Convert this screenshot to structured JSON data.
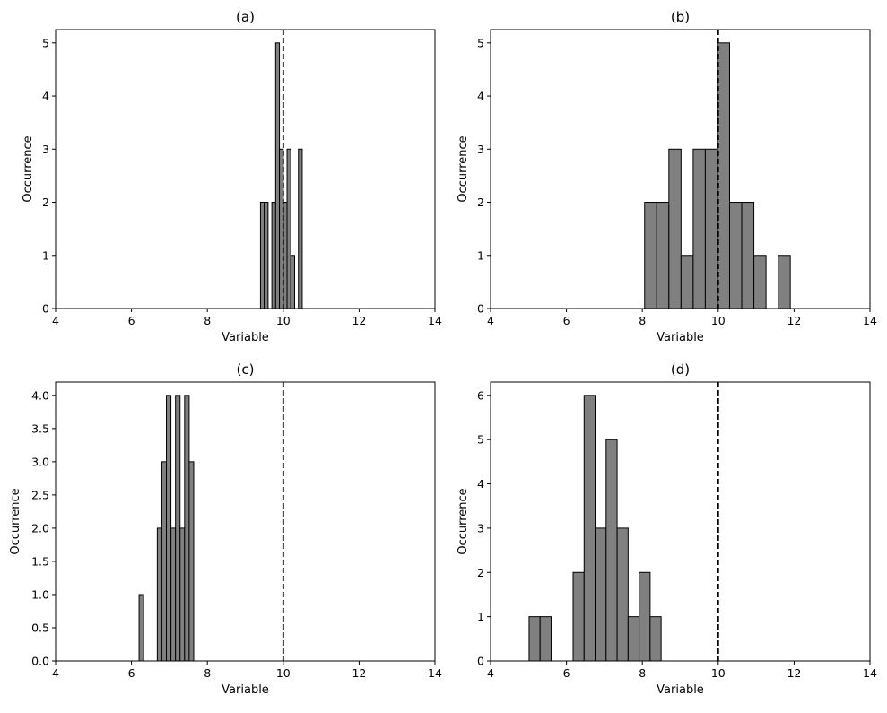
{
  "figure": {
    "bar_color": "#808080",
    "edge_color": "#000000",
    "reference_line_color": "#000000"
  },
  "chart_data": [
    {
      "type": "bar",
      "title": "(a)",
      "xlabel": "Variable",
      "ylabel": "Occurrence",
      "xlim": [
        4,
        14
      ],
      "ylim": [
        0,
        5.25
      ],
      "xticks": [
        "4",
        "6",
        "8",
        "10",
        "12",
        "14"
      ],
      "yticks": [
        "0",
        "1",
        "2",
        "3",
        "4",
        "5"
      ],
      "reference_line_x": 10,
      "bin_width": 0.1,
      "bins": [
        {
          "x": 9.45,
          "count": 2
        },
        {
          "x": 9.55,
          "count": 2
        },
        {
          "x": 9.65,
          "count": 0
        },
        {
          "x": 9.75,
          "count": 2
        },
        {
          "x": 9.85,
          "count": 5
        },
        {
          "x": 9.95,
          "count": 3
        },
        {
          "x": 10.05,
          "count": 2
        },
        {
          "x": 10.15,
          "count": 3
        },
        {
          "x": 10.25,
          "count": 1
        },
        {
          "x": 10.35,
          "count": 0
        },
        {
          "x": 10.45,
          "count": 3
        }
      ]
    },
    {
      "type": "bar",
      "title": "(b)",
      "xlabel": "Variable",
      "ylabel": "Occurrence",
      "xlim": [
        4,
        14
      ],
      "ylim": [
        0,
        5.25
      ],
      "xticks": [
        "4",
        "6",
        "8",
        "10",
        "12",
        "14"
      ],
      "yticks": [
        "0",
        "1",
        "2",
        "3",
        "4",
        "5"
      ],
      "reference_line_x": 10,
      "bin_width": 0.32,
      "bins": [
        {
          "x": 8.22,
          "count": 2
        },
        {
          "x": 8.54,
          "count": 2
        },
        {
          "x": 8.86,
          "count": 3
        },
        {
          "x": 9.18,
          "count": 1
        },
        {
          "x": 9.5,
          "count": 3
        },
        {
          "x": 9.82,
          "count": 3
        },
        {
          "x": 10.14,
          "count": 5
        },
        {
          "x": 10.46,
          "count": 2
        },
        {
          "x": 10.78,
          "count": 2
        },
        {
          "x": 11.1,
          "count": 1
        },
        {
          "x": 11.42,
          "count": 0
        },
        {
          "x": 11.74,
          "count": 1
        }
      ]
    },
    {
      "type": "bar",
      "title": "(c)",
      "xlabel": "Variable",
      "ylabel": "Occurrence",
      "xlim": [
        4,
        14
      ],
      "ylim": [
        0,
        4.2
      ],
      "xticks": [
        "4",
        "6",
        "8",
        "10",
        "12",
        "14"
      ],
      "yticks": [
        "0.0",
        "0.5",
        "1.0",
        "1.5",
        "2.0",
        "2.5",
        "3.0",
        "3.5",
        "4.0"
      ],
      "reference_line_x": 10,
      "bin_width": 0.12,
      "bins": [
        {
          "x": 6.26,
          "count": 1
        },
        {
          "x": 6.38,
          "count": 0
        },
        {
          "x": 6.5,
          "count": 0
        },
        {
          "x": 6.62,
          "count": 0
        },
        {
          "x": 6.74,
          "count": 2
        },
        {
          "x": 6.86,
          "count": 3
        },
        {
          "x": 6.98,
          "count": 4
        },
        {
          "x": 7.1,
          "count": 2
        },
        {
          "x": 7.22,
          "count": 4
        },
        {
          "x": 7.34,
          "count": 2
        },
        {
          "x": 7.46,
          "count": 4
        },
        {
          "x": 7.58,
          "count": 3
        }
      ]
    },
    {
      "type": "bar",
      "title": "(d)",
      "xlabel": "Variable",
      "ylabel": "Occurrence",
      "xlim": [
        4,
        14
      ],
      "ylim": [
        0,
        6.3
      ],
      "xticks": [
        "4",
        "6",
        "8",
        "10",
        "12",
        "14"
      ],
      "yticks": [
        "0",
        "1",
        "2",
        "3",
        "4",
        "5",
        "6"
      ],
      "reference_line_x": 10,
      "bin_width": 0.29,
      "bins": [
        {
          "x": 5.16,
          "count": 1
        },
        {
          "x": 5.45,
          "count": 1
        },
        {
          "x": 5.74,
          "count": 0
        },
        {
          "x": 6.03,
          "count": 0
        },
        {
          "x": 6.32,
          "count": 2
        },
        {
          "x": 6.61,
          "count": 6
        },
        {
          "x": 6.9,
          "count": 3
        },
        {
          "x": 7.19,
          "count": 5
        },
        {
          "x": 7.48,
          "count": 3
        },
        {
          "x": 7.77,
          "count": 1
        },
        {
          "x": 8.06,
          "count": 2
        },
        {
          "x": 8.35,
          "count": 1
        }
      ]
    }
  ]
}
